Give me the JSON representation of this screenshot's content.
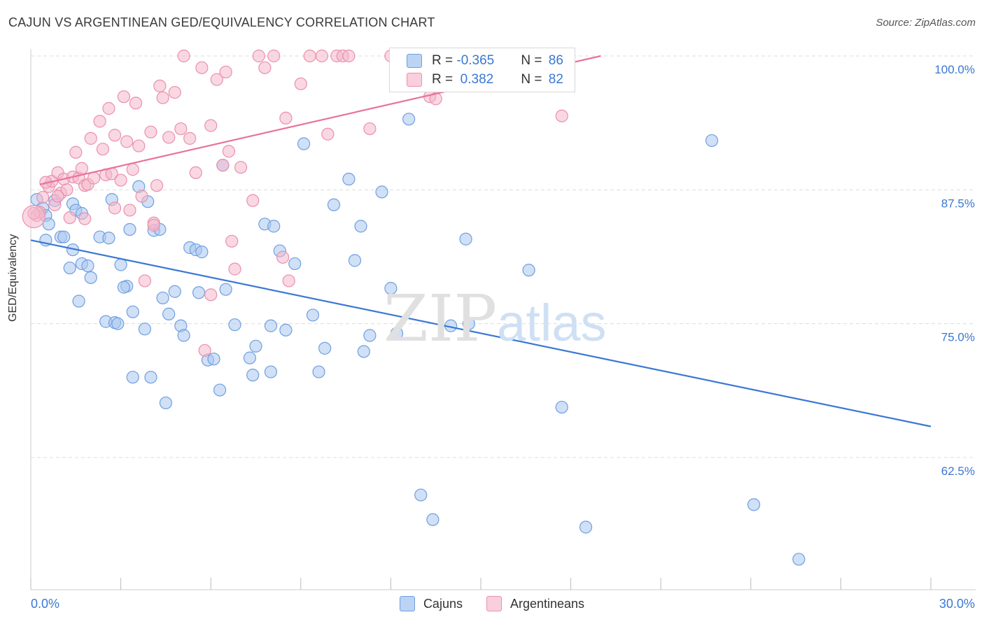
{
  "title": "CAJUN VS ARGENTINEAN GED/EQUIVALENCY CORRELATION CHART",
  "source": "Source: ZipAtlas.com",
  "watermark": {
    "zip": "ZIP",
    "atlas": "atlas"
  },
  "legend": {
    "rows": [
      {
        "r_label": "R = ",
        "r_value": "-0.365",
        "n_label": "N = ",
        "n_value": "86",
        "color": "#a9c6ee"
      },
      {
        "r_label": "R = ",
        "r_value": " 0.382",
        "n_label": "N = ",
        "n_value": "82",
        "color": "#f4b8cb"
      }
    ]
  },
  "bottom_legend": [
    {
      "label": "Cajuns",
      "color": "#a9c6ee"
    },
    {
      "label": "Argentineans",
      "color": "#f4b8cb"
    }
  ],
  "chart_data": {
    "type": "scatter",
    "title": "CAJUN VS ARGENTINEAN GED/EQUIVALENCY CORRELATION CHART",
    "xlabel": "",
    "ylabel": "GED/Equivalency",
    "xlim": [
      0,
      30
    ],
    "ylim": [
      50,
      101
    ],
    "x_tick_labels": [
      "0.0%",
      "30.0%"
    ],
    "y_ticks": [
      62.5,
      75.0,
      87.5,
      100.0
    ],
    "y_tick_labels": [
      "62.5%",
      "75.0%",
      "87.5%",
      "100.0%"
    ],
    "grid": "horizontal dashed",
    "legend_position": "top-center",
    "series": [
      {
        "name": "Cajuns",
        "color": "#3a78d4",
        "fill": "#a9c6ee",
        "r": -0.365,
        "n": 86,
        "trend": {
          "x": [
            0,
            30
          ],
          "y": [
            82.8,
            65.4
          ]
        },
        "points": [
          [
            0.2,
            86.6
          ],
          [
            0.4,
            85.8
          ],
          [
            0.5,
            85.1
          ],
          [
            0.6,
            84.3
          ],
          [
            0.8,
            86.5
          ],
          [
            0.5,
            82.8
          ],
          [
            1.0,
            83.1
          ],
          [
            1.1,
            83.1
          ],
          [
            1.4,
            86.2
          ],
          [
            1.5,
            85.6
          ],
          [
            1.7,
            85.3
          ],
          [
            1.4,
            81.9
          ],
          [
            1.7,
            80.6
          ],
          [
            1.3,
            80.2
          ],
          [
            1.9,
            80.4
          ],
          [
            2.0,
            79.3
          ],
          [
            2.3,
            83.1
          ],
          [
            2.6,
            83.0
          ],
          [
            2.7,
            86.6
          ],
          [
            1.6,
            77.1
          ],
          [
            2.5,
            75.2
          ],
          [
            2.8,
            75.1
          ],
          [
            2.9,
            75.0
          ],
          [
            3.0,
            80.5
          ],
          [
            3.2,
            78.5
          ],
          [
            3.1,
            78.4
          ],
          [
            3.4,
            76.1
          ],
          [
            3.8,
            74.5
          ],
          [
            3.3,
            83.8
          ],
          [
            3.6,
            87.8
          ],
          [
            3.9,
            86.4
          ],
          [
            4.1,
            83.7
          ],
          [
            4.3,
            83.8
          ],
          [
            4.4,
            77.4
          ],
          [
            4.6,
            75.9
          ],
          [
            4.8,
            78.0
          ],
          [
            5.0,
            74.8
          ],
          [
            5.1,
            73.9
          ],
          [
            5.3,
            82.1
          ],
          [
            5.5,
            81.9
          ],
          [
            5.7,
            81.7
          ],
          [
            5.6,
            77.9
          ],
          [
            5.9,
            71.6
          ],
          [
            6.1,
            71.7
          ],
          [
            6.3,
            68.8
          ],
          [
            6.4,
            89.8
          ],
          [
            6.5,
            78.2
          ],
          [
            6.8,
            74.9
          ],
          [
            7.3,
            71.8
          ],
          [
            7.5,
            72.9
          ],
          [
            7.4,
            70.2
          ],
          [
            7.8,
            84.3
          ],
          [
            8.1,
            84.1
          ],
          [
            8.3,
            81.8
          ],
          [
            8.5,
            74.4
          ],
          [
            8.0,
            74.8
          ],
          [
            8.0,
            70.5
          ],
          [
            8.8,
            80.6
          ],
          [
            9.1,
            91.8
          ],
          [
            9.4,
            75.8
          ],
          [
            9.6,
            70.5
          ],
          [
            9.8,
            72.7
          ],
          [
            10.1,
            86.1
          ],
          [
            10.6,
            88.5
          ],
          [
            10.8,
            80.9
          ],
          [
            11.0,
            84.1
          ],
          [
            11.1,
            72.4
          ],
          [
            11.3,
            73.9
          ],
          [
            11.7,
            87.3
          ],
          [
            12.0,
            78.3
          ],
          [
            12.2,
            74.1
          ],
          [
            12.6,
            94.1
          ],
          [
            13.0,
            59.0
          ],
          [
            13.4,
            56.7
          ],
          [
            14.0,
            74.8
          ],
          [
            14.6,
            75.0
          ],
          [
            14.5,
            82.9
          ],
          [
            16.6,
            80.0
          ],
          [
            17.7,
            67.2
          ],
          [
            18.5,
            56.0
          ],
          [
            22.7,
            92.1
          ],
          [
            24.1,
            58.1
          ],
          [
            25.6,
            53.0
          ],
          [
            3.4,
            70.0
          ],
          [
            4.0,
            70.0
          ],
          [
            4.5,
            67.6
          ]
        ]
      },
      {
        "name": "Argentineans",
        "color": "#e8739b",
        "fill": "#f4b8cb",
        "r": 0.382,
        "n": 82,
        "trend": {
          "x": [
            0.3,
            19.0
          ],
          "y": [
            88.0,
            100.0
          ]
        },
        "points": [
          [
            0.2,
            85.1
          ],
          [
            0.3,
            85.4
          ],
          [
            0.4,
            86.8
          ],
          [
            0.6,
            87.8
          ],
          [
            0.7,
            88.3
          ],
          [
            0.8,
            86.1
          ],
          [
            0.9,
            89.1
          ],
          [
            1.0,
            87.2
          ],
          [
            1.1,
            88.5
          ],
          [
            1.2,
            87.5
          ],
          [
            1.3,
            84.9
          ],
          [
            1.4,
            88.7
          ],
          [
            1.5,
            91.0
          ],
          [
            1.6,
            88.6
          ],
          [
            1.7,
            89.5
          ],
          [
            1.8,
            87.9
          ],
          [
            1.9,
            88.0
          ],
          [
            2.0,
            92.3
          ],
          [
            2.1,
            88.6
          ],
          [
            2.3,
            93.9
          ],
          [
            2.4,
            91.3
          ],
          [
            2.5,
            88.9
          ],
          [
            2.6,
            95.1
          ],
          [
            2.7,
            89.0
          ],
          [
            2.8,
            92.6
          ],
          [
            3.0,
            88.4
          ],
          [
            3.1,
            96.2
          ],
          [
            3.2,
            92.0
          ],
          [
            3.3,
            85.6
          ],
          [
            3.4,
            89.4
          ],
          [
            3.5,
            95.6
          ],
          [
            3.6,
            91.6
          ],
          [
            3.7,
            86.9
          ],
          [
            3.8,
            79.0
          ],
          [
            4.0,
            92.9
          ],
          [
            4.1,
            84.4
          ],
          [
            4.2,
            87.9
          ],
          [
            4.3,
            97.2
          ],
          [
            4.4,
            96.1
          ],
          [
            4.6,
            92.4
          ],
          [
            4.8,
            96.6
          ],
          [
            5.0,
            93.2
          ],
          [
            5.1,
            100.0
          ],
          [
            5.3,
            92.3
          ],
          [
            5.5,
            89.1
          ],
          [
            5.7,
            98.9
          ],
          [
            5.8,
            72.5
          ],
          [
            6.0,
            93.5
          ],
          [
            6.2,
            97.8
          ],
          [
            6.4,
            89.8
          ],
          [
            6.5,
            98.5
          ],
          [
            6.6,
            91.1
          ],
          [
            6.7,
            82.7
          ],
          [
            6.8,
            80.1
          ],
          [
            7.0,
            89.6
          ],
          [
            7.4,
            86.5
          ],
          [
            7.6,
            100.0
          ],
          [
            7.8,
            98.9
          ],
          [
            8.1,
            100.0
          ],
          [
            8.5,
            94.2
          ],
          [
            8.4,
            81.2
          ],
          [
            8.6,
            79.0
          ],
          [
            9.0,
            97.4
          ],
          [
            9.3,
            100.0
          ],
          [
            9.7,
            100.0
          ],
          [
            9.9,
            92.7
          ],
          [
            10.2,
            100.0
          ],
          [
            10.4,
            100.0
          ],
          [
            10.6,
            100.0
          ],
          [
            11.3,
            93.2
          ],
          [
            12.0,
            100.0
          ],
          [
            13.8,
            100.0
          ],
          [
            13.3,
            96.2
          ],
          [
            13.5,
            96.0
          ],
          [
            17.7,
            94.4
          ],
          [
            0.5,
            88.2
          ],
          [
            0.9,
            86.9
          ],
          [
            1.8,
            84.8
          ],
          [
            2.8,
            85.8
          ],
          [
            4.1,
            84.2
          ],
          [
            6.0,
            77.7
          ],
          [
            0.1,
            85.3
          ]
        ]
      }
    ]
  }
}
